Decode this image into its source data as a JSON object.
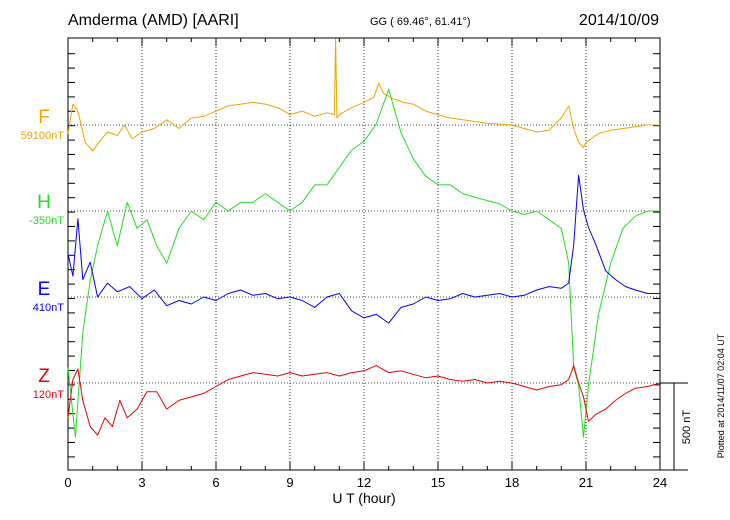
{
  "header": {
    "station": "Amderma (AMD)  [AARI]",
    "coords": "GG ( 69.46°,  61.41°)",
    "date": "2014/10/09"
  },
  "footer": {
    "xlabel": "U T (hour)",
    "plotted": "Plotted at 2014/11/07 02:04 UT",
    "scale": "500 nT"
  },
  "chart_data": {
    "type": "line",
    "xlabel": "U T (hour)",
    "xlim": [
      0,
      24
    ],
    "xticks": [
      "0",
      "3",
      "6",
      "9",
      "12",
      "15",
      "18",
      "21",
      "24"
    ],
    "scale_bar_nT": 500,
    "grid": true,
    "series": [
      {
        "name": "F",
        "baseline_label": "59100nT",
        "color": "#f0a500",
        "unit": "nT",
        "x": [
          0,
          0.2,
          0.4,
          0.7,
          1.0,
          1.3,
          1.6,
          2.0,
          2.3,
          2.6,
          3.0,
          3.5,
          4.0,
          4.5,
          5.0,
          5.5,
          6.0,
          6.5,
          7.0,
          7.5,
          8.0,
          8.5,
          9.0,
          9.5,
          10.0,
          10.5,
          10.8,
          10.85,
          10.9,
          11.0,
          11.5,
          12.0,
          12.4,
          12.6,
          12.8,
          13.2,
          13.6,
          14.0,
          14.5,
          15.0,
          15.5,
          16.0,
          16.5,
          17.0,
          17.5,
          18.0,
          18.5,
          19.0,
          19.5,
          20.0,
          20.3,
          20.5,
          20.7,
          20.9,
          21.0,
          21.2,
          21.5,
          22.0,
          22.5,
          23.0,
          23.5,
          24.0
        ],
        "y": [
          -50,
          120,
          80,
          -100,
          -150,
          -90,
          -40,
          -60,
          0,
          -80,
          -40,
          -20,
          30,
          -20,
          40,
          50,
          80,
          110,
          120,
          130,
          120,
          100,
          60,
          80,
          50,
          70,
          60,
          1020,
          40,
          60,
          100,
          130,
          160,
          240,
          180,
          150,
          130,
          120,
          80,
          60,
          40,
          30,
          20,
          10,
          5,
          0,
          -20,
          -40,
          -30,
          40,
          110,
          -20,
          -100,
          -130,
          -100,
          -80,
          -50,
          -30,
          -20,
          -10,
          0,
          0
        ]
      },
      {
        "name": "H",
        "baseline_label": "-350nT",
        "color": "#22dd22",
        "unit": "nT",
        "x": [
          0,
          0.3,
          0.6,
          0.9,
          1.2,
          1.6,
          2.0,
          2.4,
          2.8,
          3.2,
          3.6,
          4.0,
          4.5,
          5.0,
          5.5,
          6.0,
          6.5,
          7.0,
          7.5,
          8.0,
          8.5,
          9.0,
          9.5,
          10.0,
          10.5,
          11.0,
          11.5,
          12.0,
          12.5,
          13.0,
          13.5,
          14.0,
          14.5,
          15.0,
          15.5,
          16.0,
          16.5,
          17.0,
          17.5,
          18.0,
          18.5,
          19.0,
          19.5,
          20.0,
          20.3,
          20.5,
          20.7,
          20.9,
          21.1,
          21.5,
          22.0,
          22.5,
          23.0,
          23.5,
          24.0
        ],
        "y": [
          -900,
          -1300,
          -700,
          -400,
          -200,
          0,
          -200,
          50,
          -100,
          -50,
          -200,
          -300,
          -100,
          0,
          -50,
          50,
          0,
          50,
          50,
          100,
          50,
          0,
          50,
          150,
          150,
          250,
          350,
          400,
          500,
          700,
          450,
          300,
          200,
          150,
          150,
          100,
          80,
          60,
          40,
          0,
          -20,
          0,
          -50,
          -100,
          -300,
          -900,
          -1000,
          -1300,
          -1000,
          -600,
          -300,
          -100,
          -30,
          0,
          0
        ]
      },
      {
        "name": "E",
        "baseline_label": "410nT",
        "color": "#0000ff",
        "unit": "nT",
        "x": [
          0,
          0.2,
          0.4,
          0.6,
          0.9,
          1.2,
          1.6,
          2.0,
          2.5,
          3.0,
          3.5,
          4.0,
          4.5,
          5.0,
          5.5,
          6.0,
          6.5,
          7.0,
          7.5,
          8.0,
          8.5,
          9.0,
          9.5,
          10.0,
          10.5,
          11.0,
          11.5,
          12.0,
          12.5,
          13.0,
          13.5,
          14.0,
          14.5,
          15.0,
          15.5,
          16.0,
          16.5,
          17.0,
          17.5,
          18.0,
          18.5,
          19.0,
          19.5,
          20.0,
          20.3,
          20.5,
          20.7,
          20.9,
          21.1,
          21.4,
          21.8,
          22.2,
          22.6,
          23.0,
          23.5,
          24.0
        ],
        "y": [
          250,
          120,
          450,
          100,
          200,
          0,
          80,
          30,
          60,
          -10,
          40,
          -50,
          -20,
          -40,
          0,
          -20,
          20,
          40,
          10,
          20,
          -10,
          0,
          -20,
          -60,
          0,
          20,
          -80,
          -120,
          -100,
          -150,
          -60,
          -40,
          0,
          -20,
          -10,
          20,
          0,
          10,
          20,
          0,
          10,
          40,
          60,
          50,
          80,
          300,
          700,
          500,
          400,
          300,
          150,
          100,
          60,
          40,
          20,
          20
        ]
      },
      {
        "name": "Z",
        "baseline_label": "120nT",
        "color": "#ee0000",
        "unit": "nT",
        "x": [
          0,
          0.2,
          0.4,
          0.6,
          0.9,
          1.2,
          1.5,
          1.8,
          2.1,
          2.4,
          2.8,
          3.2,
          3.6,
          4.0,
          4.5,
          5.0,
          5.5,
          6.0,
          6.5,
          7.0,
          7.5,
          8.0,
          8.5,
          9.0,
          9.5,
          10.0,
          10.5,
          11.0,
          11.5,
          12.0,
          12.5,
          13.0,
          13.5,
          14.0,
          14.5,
          15.0,
          15.5,
          16.0,
          16.5,
          17.0,
          17.5,
          18.0,
          18.5,
          19.0,
          19.5,
          20.0,
          20.3,
          20.5,
          20.7,
          20.9,
          21.1,
          21.4,
          21.8,
          22.2,
          22.6,
          23.0,
          23.5,
          24.0
        ],
        "y": [
          -200,
          20,
          80,
          -100,
          -250,
          -300,
          -200,
          -250,
          -100,
          -200,
          -150,
          -50,
          -50,
          -150,
          -100,
          -80,
          -60,
          -20,
          20,
          40,
          60,
          50,
          40,
          60,
          40,
          50,
          60,
          40,
          60,
          70,
          100,
          60,
          70,
          50,
          30,
          40,
          20,
          10,
          20,
          0,
          10,
          0,
          -20,
          -40,
          -20,
          -10,
          20,
          100,
          0,
          -80,
          -220,
          -180,
          -150,
          -100,
          -60,
          -30,
          -20,
          0
        ]
      }
    ]
  }
}
